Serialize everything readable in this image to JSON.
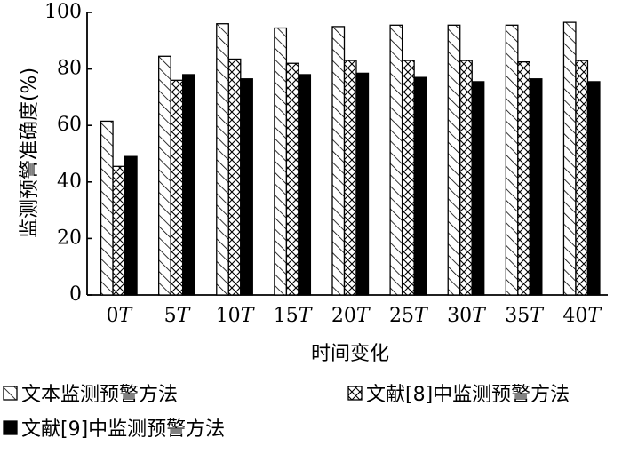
{
  "chart_data": {
    "type": "bar",
    "xlabel": "时间变化",
    "ylabel": "监测预警准确度(%)",
    "ylim": [
      0,
      100
    ],
    "yticks": [
      0,
      20,
      40,
      60,
      80,
      100
    ],
    "categories": [
      {
        "num": "0",
        "unit": "T"
      },
      {
        "num": "5",
        "unit": "T"
      },
      {
        "num": "10",
        "unit": "T"
      },
      {
        "num": "15",
        "unit": "T"
      },
      {
        "num": "20",
        "unit": "T"
      },
      {
        "num": "25",
        "unit": "T"
      },
      {
        "num": "30",
        "unit": "T"
      },
      {
        "num": "35",
        "unit": "T"
      },
      {
        "num": "40",
        "unit": "T"
      }
    ],
    "series": [
      {
        "name": "文本监测预警方法",
        "pattern": "diagonal-hatch",
        "values": [
          61.5,
          84.5,
          96,
          94.5,
          95,
          95.5,
          95.5,
          95.5,
          96.5
        ]
      },
      {
        "name": "文献[8]中监测预警方法",
        "pattern": "cross-hatch",
        "values": [
          45.5,
          76,
          83.5,
          82,
          83,
          83,
          83,
          82.5,
          83
        ]
      },
      {
        "name": "文献[9]中监测预警方法",
        "pattern": "solid-black",
        "values": [
          49,
          78,
          76.5,
          78,
          78.5,
          77,
          75.5,
          76.5,
          75.5
        ]
      }
    ],
    "legend_position": "bottom",
    "grid": false
  }
}
